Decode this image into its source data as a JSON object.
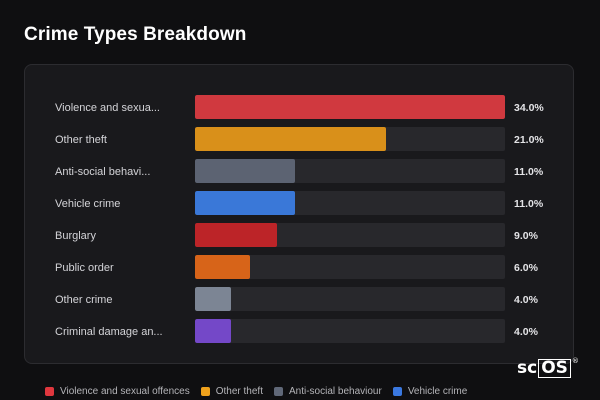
{
  "title": "Crime Types Breakdown",
  "chart_data": {
    "type": "bar",
    "orientation": "horizontal",
    "title": "Crime Types Breakdown",
    "categories": [
      "Violence and sexua...",
      "Other theft",
      "Anti-social behavi...",
      "Vehicle crime",
      "Burglary",
      "Public order",
      "Other crime",
      "Criminal damage an..."
    ],
    "values": [
      34.0,
      21.0,
      11.0,
      11.0,
      9.0,
      6.0,
      4.0,
      4.0
    ],
    "value_labels": [
      "34.0%",
      "21.0%",
      "11.0%",
      "11.0%",
      "9.0%",
      "6.0%",
      "4.0%",
      "4.0%"
    ],
    "colors": [
      "#d0393f",
      "#d9901a",
      "#5c6372",
      "#3a78d8",
      "#bc2428",
      "#d76419",
      "#7c8594",
      "#7448c8"
    ],
    "xlim": [
      0,
      34.0
    ],
    "legend": [
      {
        "label": "Violence and sexual offences",
        "color": "#e0373e"
      },
      {
        "label": "Other theft",
        "color": "#f0a21c"
      },
      {
        "label": "Anti-social behaviour",
        "color": "#606878"
      },
      {
        "label": "Vehicle crime",
        "color": "#3a78e0"
      }
    ],
    "legend_position": "bottom",
    "grid": false
  },
  "logo": {
    "text_a": "sc",
    "text_b": "OS",
    "mark": "®"
  }
}
